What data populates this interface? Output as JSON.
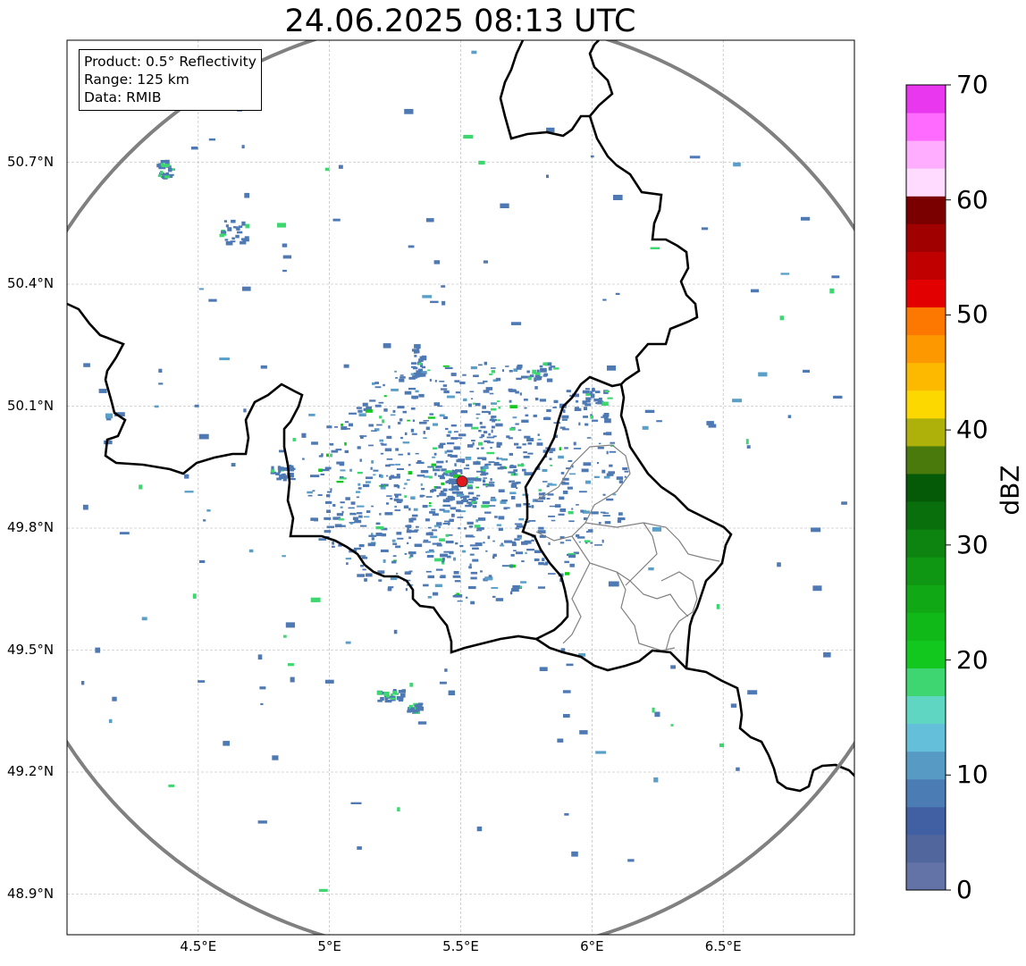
{
  "title": "24.06.2025 08:13 UTC",
  "info": {
    "product": "Product: 0.5° Reflectivity",
    "range": "Range: 125 km",
    "data": "Data: RMIB"
  },
  "map": {
    "lon_range": [
      4.0,
      7.0
    ],
    "lat_range": [
      48.8,
      51.0
    ],
    "lon_ticks": [
      {
        "value": 4.5,
        "label": "4.5°E"
      },
      {
        "value": 5.0,
        "label": "5°E"
      },
      {
        "value": 5.5,
        "label": "5.5°E"
      },
      {
        "value": 6.0,
        "label": "6°E"
      },
      {
        "value": 6.5,
        "label": "6.5°E"
      }
    ],
    "lat_ticks": [
      {
        "value": 50.7,
        "label": "50.7°N"
      },
      {
        "value": 50.4,
        "label": "50.4°N"
      },
      {
        "value": 50.1,
        "label": "50.1°N"
      },
      {
        "value": 49.8,
        "label": "49.8°N"
      },
      {
        "value": 49.5,
        "label": "49.5°N"
      },
      {
        "value": 49.2,
        "label": "49.2°N"
      },
      {
        "value": 48.9,
        "label": "48.9°N"
      }
    ],
    "radar_site": {
      "lon": 5.505,
      "lat": 49.915
    },
    "range_ring_color": "#808080",
    "radar_marker_color": "#e31a1c",
    "border_color": "#000000",
    "district_border_color": "#808080",
    "gridlines": true
  },
  "colorbar": {
    "label": "dBZ",
    "vmin": 0,
    "vmax": 70,
    "ticks": [
      "0",
      "10",
      "20",
      "30",
      "40",
      "50",
      "60",
      "70"
    ],
    "colors": [
      "#6373a8",
      "#52669e",
      "#4160a4",
      "#4b7db4",
      "#579bc4",
      "#64c0da",
      "#5fd6c1",
      "#3dd670",
      "#12c81e",
      "#10b918",
      "#10a815",
      "#0f9612",
      "#0c840f",
      "#086f0c",
      "#055a08",
      "#4b7a0c",
      "#adb10a",
      "#fdd800",
      "#fdb800",
      "#fd9800",
      "#fd7800",
      "#e30000",
      "#c00000",
      "#a00000",
      "#7a0000",
      "#ffdcff",
      "#ffaeff",
      "#ff6aff",
      "#e936ef"
    ]
  },
  "echo_colors": [
    "#4e79b3",
    "#5a9fc8",
    "#3dd670",
    "#12c81e",
    "#0e9a14"
  ]
}
